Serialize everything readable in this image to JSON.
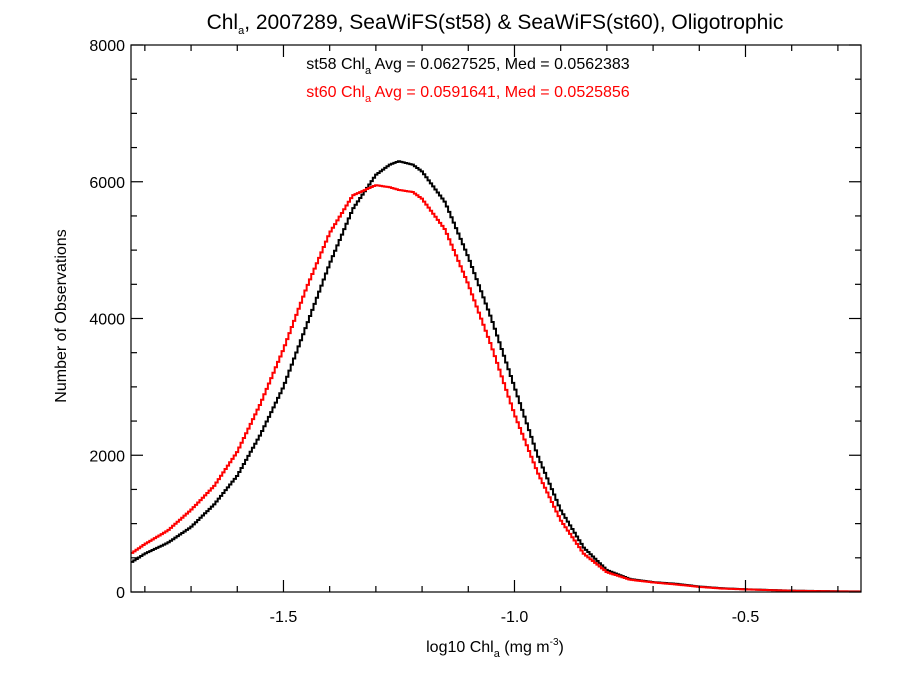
{
  "chart_data": {
    "type": "line",
    "title_parts": [
      "Chl",
      "a",
      ", 2007289, SeaWiFS(st58) & SeaWiFS(st60), Oligotrophic"
    ],
    "xlabel_parts": [
      "log10 Chl",
      "a",
      " (mg m",
      "-3",
      ")"
    ],
    "ylabel": "Number of Observations",
    "xlim": [
      -1.83,
      -0.25
    ],
    "ylim": [
      0,
      8000
    ],
    "xticks": [
      {
        "value": -1.5,
        "label": "-1.5"
      },
      {
        "value": -1.0,
        "label": "-1.0"
      },
      {
        "value": -0.5,
        "label": "-0.5"
      }
    ],
    "yticks": [
      {
        "value": 0,
        "label": "0"
      },
      {
        "value": 2000,
        "label": "2000"
      },
      {
        "value": 4000,
        "label": "4000"
      },
      {
        "value": 6000,
        "label": "6000"
      },
      {
        "value": 8000,
        "label": "8000"
      }
    ],
    "annotations": [
      {
        "parts": [
          "st58 Chl",
          "a",
          " Avg = 0.0627525, Med = 0.0562383"
        ],
        "color": "#000000"
      },
      {
        "parts": [
          "st60 Chl",
          "a",
          " Avg = 0.0591641, Med = 0.0525856"
        ],
        "color": "#ff0000"
      }
    ],
    "series": [
      {
        "color": "#000000",
        "x": [
          -1.83,
          -1.8,
          -1.75,
          -1.7,
          -1.65,
          -1.6,
          -1.55,
          -1.5,
          -1.45,
          -1.4,
          -1.35,
          -1.3,
          -1.27,
          -1.25,
          -1.22,
          -1.2,
          -1.15,
          -1.1,
          -1.05,
          -1.0,
          -0.95,
          -0.9,
          -0.85,
          -0.8,
          -0.75,
          -0.7,
          -0.65,
          -0.6,
          -0.55,
          -0.5,
          -0.45,
          -0.4,
          -0.35,
          -0.3,
          -0.25
        ],
        "y": [
          430,
          560,
          720,
          950,
          1280,
          1700,
          2300,
          3000,
          3900,
          4800,
          5600,
          6100,
          6250,
          6300,
          6250,
          6150,
          5700,
          4900,
          4000,
          3000,
          2000,
          1200,
          650,
          320,
          190,
          145,
          120,
          80,
          55,
          40,
          30,
          20,
          15,
          10,
          8
        ]
      },
      {
        "color": "#ff0000",
        "x": [
          -1.83,
          -1.8,
          -1.75,
          -1.7,
          -1.65,
          -1.6,
          -1.55,
          -1.5,
          -1.45,
          -1.4,
          -1.35,
          -1.3,
          -1.27,
          -1.25,
          -1.22,
          -1.2,
          -1.15,
          -1.1,
          -1.05,
          -1.0,
          -0.95,
          -0.9,
          -0.85,
          -0.8,
          -0.75,
          -0.7,
          -0.65,
          -0.6,
          -0.55,
          -0.5,
          -0.45,
          -0.4,
          -0.35,
          -0.3,
          -0.25
        ],
        "y": [
          560,
          700,
          900,
          1200,
          1550,
          2050,
          2750,
          3550,
          4450,
          5250,
          5800,
          5950,
          5920,
          5880,
          5850,
          5750,
          5300,
          4500,
          3600,
          2600,
          1750,
          1050,
          560,
          290,
          180,
          140,
          110,
          75,
          50,
          38,
          28,
          18,
          14,
          9,
          7
        ]
      }
    ]
  }
}
